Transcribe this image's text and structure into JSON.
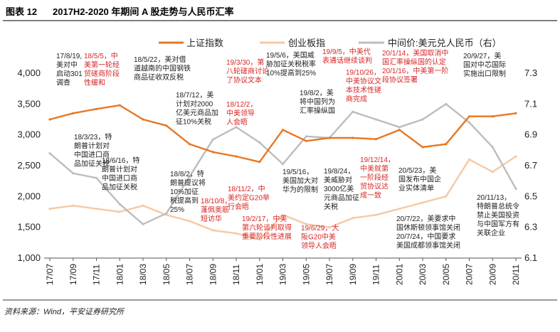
{
  "header": {
    "fig_no": "图表 12",
    "title": "2017H2-2020 年期间 A 股走势与人民币汇率"
  },
  "footer": {
    "source": "资料来源：Wind，平安证券研究所"
  },
  "colors": {
    "sse": "#E87722",
    "cyb": "#F6C9A4",
    "usd": "#BDBDBD",
    "annotation_red": "#D72626",
    "annotation_black": "#222222",
    "rule": "#333333"
  },
  "chart_data": {
    "type": "line",
    "x": [
      "17/07",
      "17/09",
      "17/11",
      "18/01",
      "18/03",
      "18/05",
      "18/07",
      "18/09",
      "18/11",
      "19/01",
      "19/03",
      "19/05",
      "19/07",
      "19/09",
      "19/11",
      "20/01",
      "20/03",
      "20/05",
      "20/07",
      "20/09",
      "20/11"
    ],
    "series": [
      {
        "name": "上证指数",
        "axis": "left",
        "values": [
          3250,
          3350,
          3420,
          3480,
          3250,
          3150,
          2850,
          2720,
          2650,
          2560,
          3080,
          2900,
          2950,
          2950,
          2930,
          3080,
          2800,
          2850,
          3300,
          3300,
          3350
        ]
      },
      {
        "name": "创业板指",
        "axis": "left",
        "values": [
          1800,
          1850,
          1800,
          1750,
          1850,
          1700,
          1600,
          1450,
          1400,
          1300,
          1700,
          1550,
          1500,
          1650,
          1700,
          1800,
          1900,
          2000,
          2600,
          2400,
          2650
        ]
      },
      {
        "name": "中间价:美元兑人民币（右）",
        "axis": "right",
        "values": [
          6.78,
          6.65,
          6.62,
          6.45,
          6.32,
          6.39,
          6.63,
          6.87,
          6.95,
          6.85,
          6.71,
          6.89,
          6.88,
          7.05,
          7.0,
          6.95,
          7.0,
          7.1,
          6.98,
          6.82,
          6.55
        ]
      }
    ],
    "y_left": {
      "min": 1000,
      "max": 4000,
      "ticks": [
        "1,000",
        "1,500",
        "2,000",
        "2,500",
        "3,000",
        "3,500",
        "4,000"
      ]
    },
    "y_right": {
      "min": 6.1,
      "max": 7.3,
      "ticks": [
        "6.1",
        "6.3",
        "6.5",
        "6.7",
        "6.9",
        "7.1",
        "7.3"
      ]
    },
    "legend_position": "top",
    "grid": false
  },
  "annotations": [
    {
      "text": "17/8/19,|美对中|启动301|调查",
      "color": "black"
    },
    {
      "text": "18/5/5，中|美第一轮经|贸磋商阶段|性缓和",
      "color": "red"
    },
    {
      "text": "18/5/22，美对借|道越南的中国钢铁|商品征收双反税",
      "color": "black"
    },
    {
      "text": "18/7/12，美|计划对2000|亿美元商品加|征10%关税",
      "color": "black"
    },
    {
      "text": "18/3/23，特|朗普计划对|中国进口商|品加征关税",
      "color": "black"
    },
    {
      "text": "18/6/16，特|朗普计划对|中国进口商|品加征关税",
      "color": "black"
    },
    {
      "text": "18/8/2，特|朗普提议将|10%加征|税提高到|25%",
      "color": "black"
    },
    {
      "text": "18/10/8，|蓬佩奥筋|短访华",
      "color": "red"
    },
    {
      "text": "19/3/30，第|八轮磋商讨论|了协议文本",
      "color": "red"
    },
    {
      "text": "18/12/2，|中美领导|人会晤",
      "color": "red"
    },
    {
      "text": "18/11/2，中|美约定G20举|行会晤",
      "color": "red"
    },
    {
      "text": "19/2/17，中美|第六轮谈判取得|重要阶段性进展",
      "color": "red"
    },
    {
      "text": "19/5/6，美国威|胁加征关税税率|10%提高到25%",
      "color": "black"
    },
    {
      "text": "19/8/2，美|将中国列为|汇率操纵国",
      "color": "black"
    },
    {
      "text": "19/5/16，|美国加大对|华为的限制",
      "color": "black"
    },
    {
      "text": "19/6/29，大|阪G20中美|领导人会晤",
      "color": "red"
    },
    {
      "text": "19/8/24，|美威胁对|3000亿美|元商品加征|关税",
      "color": "black"
    },
    {
      "text": "19/9/5，中美代|表通话继续谈判",
      "color": "red"
    },
    {
      "text": "19/10/26，|中美协议文|本技术性磋|商完成",
      "color": "red"
    },
    {
      "text": "19/12/14，|中美就第|一阶段经|贸协议达|成一致",
      "color": "red"
    },
    {
      "text": "20/1/14，美国取消中|国汇率操纵国的认定|20/1/16，中美第一阶|段协议签署",
      "color": "red"
    },
    {
      "text": "20/9/27，美|国对中芯国际|实施出口限制",
      "color": "black"
    },
    {
      "text": "20/5/23，美|国发布中国企|业实体清单",
      "color": "black"
    },
    {
      "text": "20/7/22，美要求中|国休斯顿领事馆关闭|20/7/24，中国要求|美国成都领事馆关闭",
      "color": "black"
    },
    {
      "text": "20/11/13，|特朗普总统令|禁止美国投资|与中国军方有|关联企业",
      "color": "black"
    }
  ]
}
